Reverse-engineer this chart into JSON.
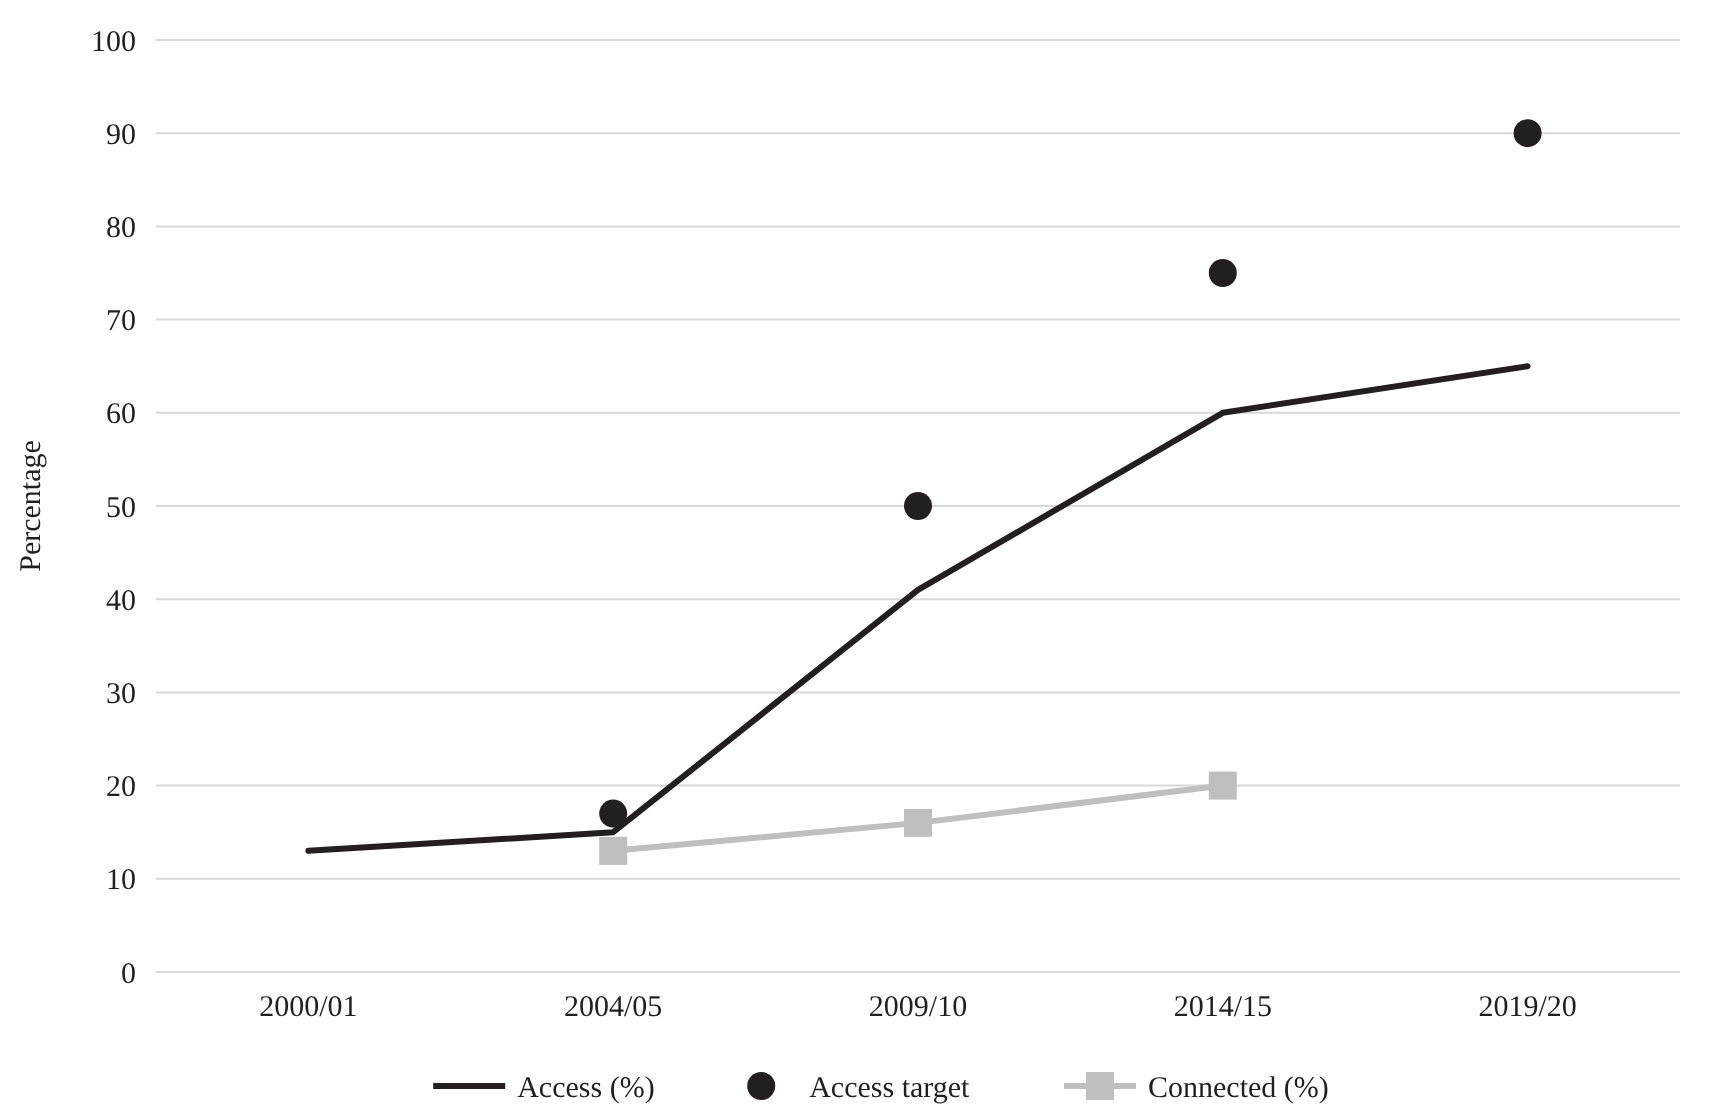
{
  "chart_data": {
    "type": "line",
    "ylabel": "Percentage",
    "categories": [
      "2000/01",
      "2004/05",
      "2009/10",
      "2014/15",
      "2019/20"
    ],
    "series": [
      {
        "name": "Access (%)",
        "color": "#231f20",
        "marker": "none",
        "values": [
          13,
          15,
          41,
          60,
          65
        ]
      },
      {
        "name": "Access target",
        "type": "scatter",
        "color": "#231f20",
        "marker": "circle",
        "values": [
          null,
          17,
          50,
          75,
          90
        ]
      },
      {
        "name": "Connected (%)",
        "color": "#bfbfbf",
        "marker": "square",
        "values": [
          null,
          13,
          16,
          20,
          null
        ]
      }
    ],
    "ylim": [
      0,
      100
    ],
    "yticks": [
      0,
      10,
      20,
      30,
      40,
      50,
      60,
      70,
      80,
      90,
      100
    ],
    "grid": "y",
    "legend": "bottom"
  }
}
